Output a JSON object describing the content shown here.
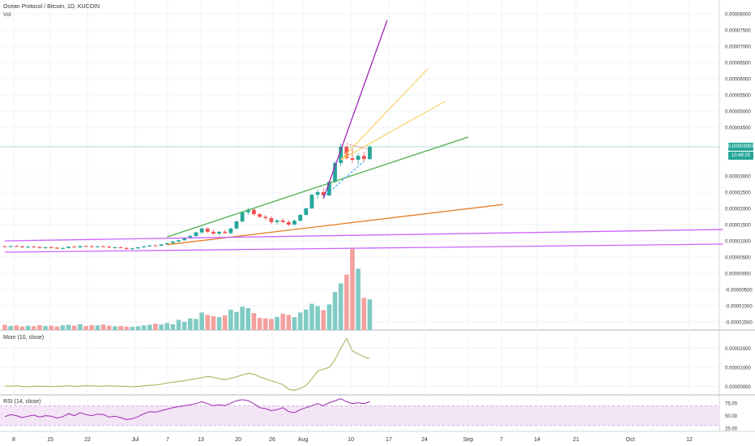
{
  "header": {
    "title": "Ocean Protocol / Bitcoin, 1D, KUCOIN",
    "volume_label": "Vol"
  },
  "price_tags": {
    "last_price": "0.00003902",
    "countdown": "10:49:25",
    "color": "#26a69a"
  },
  "colors": {
    "up": "#26a69a",
    "down": "#ef5350",
    "vol_up": "#80cbc4",
    "vol_down": "#f4a09e",
    "grid": "#f0f3fa",
    "axis_text": "#333333",
    "momentum": "#a0b050",
    "rsi": "#9c27b0",
    "rsi_band": "#f3e5f5"
  },
  "chart_data": [
    {
      "type": "candlestick",
      "pane": "price",
      "title": "Ocean Protocol / Bitcoin, 1D, KUCOIN",
      "x_tick_labels": [
        "8",
        "15",
        "22",
        "Jul",
        "7",
        "13",
        "20",
        "26",
        "Aug",
        "10",
        "17",
        "24",
        "Sep",
        "7",
        "14",
        "21",
        "Oct",
        "12"
      ],
      "y_tick_labels": [
        "0.00008000",
        "0.00007500",
        "0.00007000",
        "0.00006500",
        "0.00006000",
        "0.00005500",
        "0.00005000",
        "0.00004500",
        "0.00003000",
        "0.00002500",
        "0.00002000",
        "0.00001500",
        "0.00001000",
        "0.00000500",
        "0.00000000",
        "-0.00000500",
        "-0.00001000",
        "-0.00001500"
      ],
      "ylim": [
        -1.6e-05,
        8.15e-05
      ],
      "grid": true,
      "candles": [
        [
          8.3e-06,
          8.6e-06,
          8e-06,
          8.2e-06
        ],
        [
          8.2e-06,
          8.5e-06,
          7.9e-06,
          8.4e-06
        ],
        [
          8.4e-06,
          8.7e-06,
          8.1e-06,
          8.3e-06
        ],
        [
          8.3e-06,
          8.5e-06,
          7.8e-06,
          8e-06
        ],
        [
          8e-06,
          8.4e-06,
          7.7e-06,
          8.2e-06
        ],
        [
          8.2e-06,
          8.5e-06,
          7.9e-06,
          8.1e-06
        ],
        [
          8.1e-06,
          8.3e-06,
          7.6e-06,
          7.8e-06
        ],
        [
          7.8e-06,
          8.2e-06,
          7.5e-06,
          8e-06
        ],
        [
          8e-06,
          8.3e-06,
          7.7e-06,
          7.9e-06
        ],
        [
          7.9e-06,
          8.1e-06,
          7.4e-06,
          7.6e-06
        ],
        [
          7.6e-06,
          8e-06,
          7.3e-06,
          7.8e-06
        ],
        [
          7.8e-06,
          8.3e-06,
          7.6e-06,
          8.2e-06
        ],
        [
          8.2e-06,
          8.6e-06,
          7.9e-06,
          8e-06
        ],
        [
          8e-06,
          8.5e-06,
          7.8e-06,
          8.4e-06
        ],
        [
          8.4e-06,
          8.8e-06,
          8.1e-06,
          8.3e-06
        ],
        [
          8.3e-06,
          8.7e-06,
          8e-06,
          8.1e-06
        ],
        [
          8.1e-06,
          8.5e-06,
          7.9e-06,
          8.3e-06
        ],
        [
          8.3e-06,
          8.6e-06,
          8e-06,
          8.2e-06
        ],
        [
          8.2e-06,
          8.4e-06,
          7.8e-06,
          7.9e-06
        ],
        [
          7.9e-06,
          8.2e-06,
          7.6e-06,
          8e-06
        ],
        [
          8e-06,
          8.3e-06,
          7.7e-06,
          7.8e-06
        ],
        [
          7.8e-06,
          8.1e-06,
          7.3e-06,
          7.5e-06
        ],
        [
          7.5e-06,
          7.9e-06,
          7.2e-06,
          7.7e-06
        ],
        [
          7.7e-06,
          8.1e-06,
          7.5e-06,
          8e-06
        ],
        [
          8e-06,
          8.4e-06,
          7.8e-06,
          8.3e-06
        ],
        [
          8.3e-06,
          8.7e-06,
          8.1e-06,
          8.6e-06
        ],
        [
          8.6e-06,
          8.9e-06,
          8.3e-06,
          8.5e-06
        ],
        [
          8.5e-06,
          9e-06,
          8.4e-06,
          8.9e-06
        ],
        [
          8.9e-06,
          9.4e-06,
          8.7e-06,
          9.3e-06
        ],
        [
          9.3e-06,
          9.9e-06,
          9.1e-06,
          9.8e-06
        ],
        [
          9.8e-06,
          1.04e-05,
          9.5e-06,
          1.02e-05
        ],
        [
          1.02e-05,
          1.12e-05,
          1e-05,
          1.1e-05
        ],
        [
          1.1e-05,
          1.18e-05,
          1.06e-05,
          1.15e-05
        ],
        [
          1.15e-05,
          1.28e-05,
          1.12e-05,
          1.26e-05
        ],
        [
          1.26e-05,
          1.42e-05,
          1.22e-05,
          1.38e-05
        ],
        [
          1.38e-05,
          1.42e-05,
          1.24e-05,
          1.28e-05
        ],
        [
          1.28e-05,
          1.34e-05,
          1.19e-05,
          1.22e-05
        ],
        [
          1.22e-05,
          1.3e-05,
          1.17e-05,
          1.28e-05
        ],
        [
          1.28e-05,
          1.34e-05,
          1.21e-05,
          1.24e-05
        ],
        [
          1.24e-05,
          1.4e-05,
          1.2e-05,
          1.38e-05
        ],
        [
          1.38e-05,
          1.62e-05,
          1.35e-05,
          1.6e-05
        ],
        [
          1.6e-05,
          1.9e-05,
          1.56e-05,
          1.88e-05
        ],
        [
          1.88e-05,
          2.02e-05,
          1.8e-05,
          1.96e-05
        ],
        [
          1.96e-05,
          2.01e-05,
          1.78e-05,
          1.82e-05
        ],
        [
          1.82e-05,
          1.86e-05,
          1.7e-05,
          1.74e-05
        ],
        [
          1.74e-05,
          1.8e-05,
          1.65e-05,
          1.7e-05
        ],
        [
          1.7e-05,
          1.76e-05,
          1.52e-05,
          1.58e-05
        ],
        [
          1.58e-05,
          1.66e-05,
          1.5e-05,
          1.63e-05
        ],
        [
          1.63e-05,
          1.7e-05,
          1.55e-05,
          1.58e-05
        ],
        [
          1.58e-05,
          1.64e-05,
          1.45e-05,
          1.5e-05
        ],
        [
          1.5e-05,
          1.65e-05,
          1.48e-05,
          1.62e-05
        ],
        [
          1.62e-05,
          1.82e-05,
          1.6e-05,
          1.8e-05
        ],
        [
          1.8e-05,
          2.02e-05,
          1.78e-05,
          2e-05
        ],
        [
          2e-05,
          2.45e-05,
          1.98e-05,
          2.42e-05
        ],
        [
          2.42e-05,
          2.58e-05,
          2.3e-05,
          2.5e-05
        ],
        [
          2.5e-05,
          2.62e-05,
          2.32e-05,
          2.4e-05
        ],
        [
          2.4e-05,
          2.85e-05,
          2.38e-05,
          2.82e-05
        ],
        [
          2.82e-05,
          3.45e-05,
          2.78e-05,
          3.4e-05
        ],
        [
          3.4e-05,
          4e-05,
          3.3e-05,
          3.9e-05
        ],
        [
          3.9e-05,
          3.95e-05,
          3.5e-05,
          3.55e-05
        ],
        [
          3.55e-05,
          3.85e-05,
          3.4e-05,
          3.5e-05
        ],
        [
          3.5e-05,
          3.7e-05,
          3.35e-05,
          3.62e-05
        ],
        [
          3.62e-05,
          3.75e-05,
          3.45e-05,
          3.52e-05
        ],
        [
          3.52e-05,
          3.95e-05,
          3.5e-05,
          3.9e-05
        ]
      ],
      "volume": [
        0.18,
        0.14,
        0.16,
        0.12,
        0.15,
        0.13,
        0.17,
        0.14,
        0.15,
        0.12,
        0.16,
        0.18,
        0.15,
        0.2,
        0.14,
        0.17,
        0.16,
        0.19,
        0.15,
        0.13,
        0.14,
        0.12,
        0.11,
        0.13,
        0.16,
        0.18,
        0.22,
        0.19,
        0.24,
        0.2,
        0.35,
        0.28,
        0.4,
        0.38,
        0.6,
        0.52,
        0.48,
        0.44,
        0.5,
        0.7,
        0.62,
        0.8,
        0.75,
        0.58,
        0.42,
        0.4,
        0.38,
        0.45,
        0.56,
        0.52,
        0.44,
        0.6,
        0.7,
        0.9,
        0.82,
        0.68,
        0.88,
        1.3,
        1.6,
        1.9,
        2.8,
        2.1,
        1.1,
        1.05
      ],
      "trend_lines": [
        {
          "color": "#4caf50",
          "from": [
            28,
            1.12e-05
          ],
          "to": [
            80,
            4.2e-05
          ]
        },
        {
          "color": "#e67e22",
          "from": [
            28,
            8.8e-06
          ],
          "to": [
            86,
            2.12e-05
          ]
        },
        {
          "color": "#9c27b0",
          "from": [
            55,
            2.3e-05
          ],
          "to": [
            66,
            7.8e-05
          ]
        },
        {
          "color": "#f7d774",
          "from": [
            58,
            3.5e-05
          ],
          "to": [
            73,
            6.3e-05
          ]
        },
        {
          "color": "#f7d774",
          "from": [
            58,
            3.5e-05
          ],
          "to": [
            76,
            5.3e-05
          ]
        },
        {
          "color": "#cc66ff",
          "from": [
            0,
            1e-05
          ],
          "to": [
            124,
            1.35e-05
          ]
        },
        {
          "color": "#cc66ff",
          "from": [
            0,
            6.5e-06
          ],
          "to": [
            124,
            9e-06
          ]
        }
      ]
    },
    {
      "type": "line",
      "pane": "momentum",
      "title": "Mom (10, close)",
      "y_tick_labels": [
        "0.00002000",
        "0.00001000",
        "0.00000000"
      ],
      "ylim": [
        -4e-06,
        2.9e-05
      ],
      "values": [
        2e-07,
        1e-07,
        3e-07,
        0.0,
        -2e-07,
        1e-07,
        2e-07,
        0.0,
        -1e-07,
        1e-07,
        2e-07,
        3e-07,
        1e-07,
        2e-07,
        4e-07,
        3e-07,
        2e-07,
        1e-07,
        3e-07,
        2e-07,
        1e-07,
        0.0,
        -2e-07,
        0.0,
        3e-07,
        6e-07,
        8e-07,
        1.2e-06,
        1.8e-06,
        2.2e-06,
        2.6e-06,
        3e-06,
        3.6e-06,
        4e-06,
        4.6e-06,
        5.2e-06,
        4.8e-06,
        4e-06,
        3.6e-06,
        4.2e-06,
        5e-06,
        6e-06,
        6.8e-06,
        6.4e-06,
        5e-06,
        4e-06,
        3e-06,
        2e-06,
        1e-06,
        -1.5e-06,
        -2e-06,
        -1e-06,
        5e-07,
        4e-06,
        8e-06,
        9e-06,
        1e-05,
        1.4e-05,
        2e-05,
        2.5e-05,
        1.85e-05,
        1.7e-05,
        1.55e-05,
        1.45e-05
      ]
    },
    {
      "type": "line",
      "pane": "rsi",
      "title": "RSI (14, close)",
      "y_tick_labels": [
        "75.00",
        "50.00",
        "25.00"
      ],
      "ylim": [
        20,
        90
      ],
      "bands": [
        30,
        70
      ],
      "values": [
        48,
        52,
        50,
        46,
        49,
        51,
        47,
        50,
        49,
        45,
        48,
        54,
        50,
        56,
        52,
        50,
        53,
        52,
        47,
        49,
        46,
        42,
        44,
        48,
        54,
        58,
        57,
        60,
        63,
        66,
        68,
        70,
        72,
        74,
        78,
        74,
        70,
        72,
        70,
        75,
        80,
        82,
        80,
        74,
        66,
        64,
        60,
        62,
        66,
        58,
        56,
        62,
        66,
        70,
        74,
        70,
        76,
        80,
        84,
        78,
        74,
        76,
        74,
        78
      ],
      "x_tick_labels": [
        "8",
        "15",
        "22",
        "Jul",
        "7",
        "13",
        "20",
        "26",
        "Aug",
        "10",
        "17",
        "24",
        "Sep",
        "7",
        "14",
        "21",
        "Oct",
        "12"
      ]
    }
  ]
}
